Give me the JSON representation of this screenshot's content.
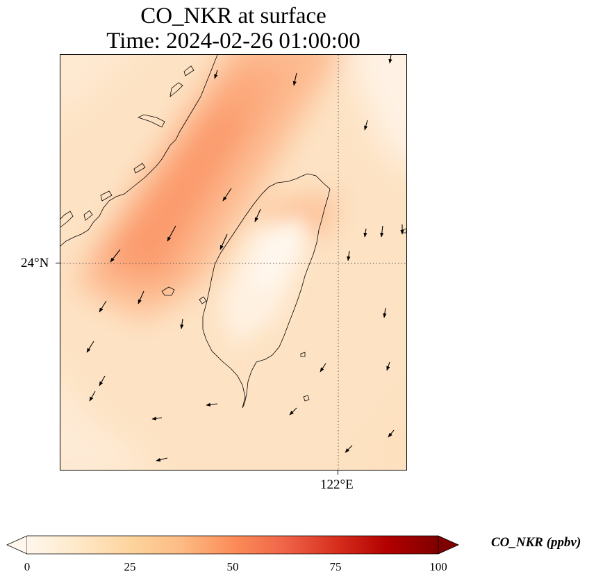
{
  "title": {
    "line1": "CO_NKR at surface",
    "line2": "Time: 2024-02-26 01:00:00"
  },
  "axes": {
    "lat_label": "24°N",
    "lon_label": "122°E"
  },
  "colorbar": {
    "label": "CO_NKR (ppbv)",
    "ticks": [
      "0",
      "25",
      "50",
      "75",
      "100"
    ],
    "range": [
      0,
      100
    ],
    "colormap": "OrRd",
    "extend": "both",
    "colors": [
      "#fff7ec",
      "#fee8c8",
      "#fdd49e",
      "#fdbb84",
      "#fc8d59",
      "#ef6548",
      "#d7301f",
      "#b30000",
      "#7f0000"
    ]
  },
  "map": {
    "region": "Taiwan and Fujian coast",
    "gridlines": "dotted",
    "features": [
      "coastlines",
      "wind vectors",
      "CO concentration field"
    ]
  }
}
